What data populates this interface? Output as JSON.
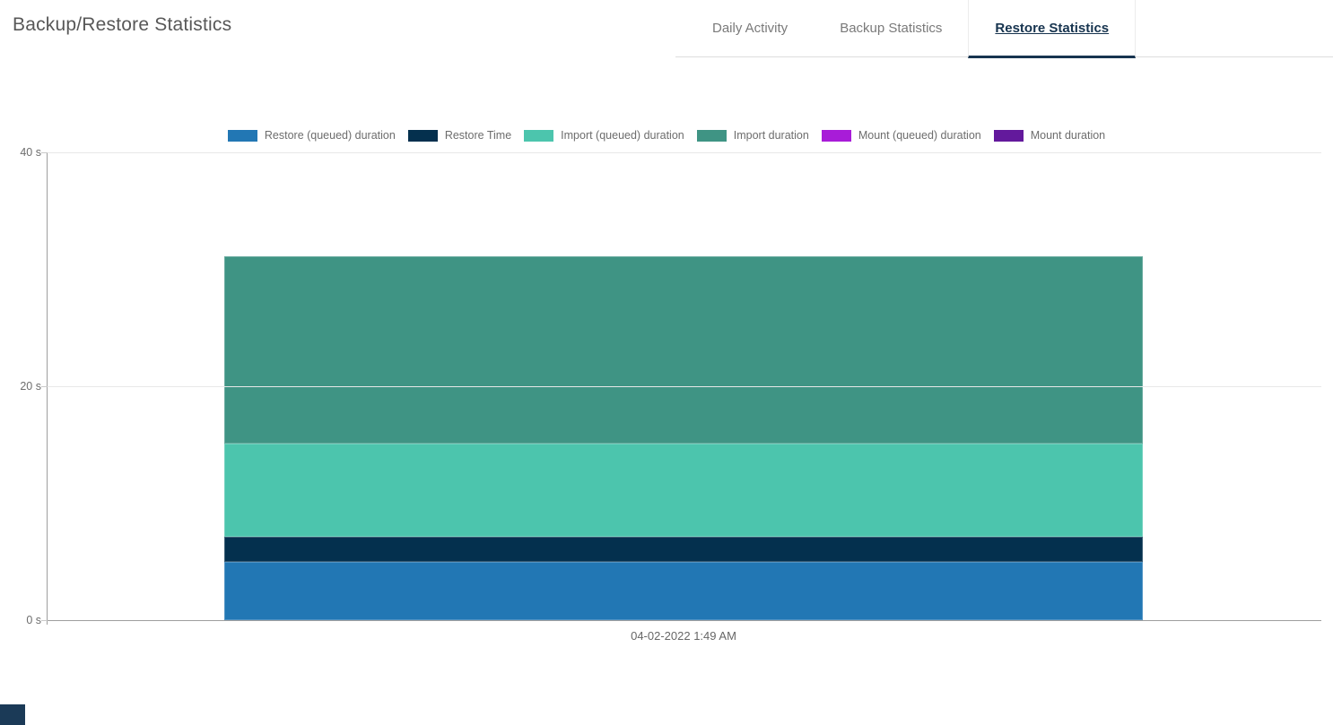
{
  "header": {
    "title": "Backup/Restore Statistics"
  },
  "tabs": {
    "items": [
      {
        "label": "Daily Activity",
        "active": false
      },
      {
        "label": "Backup Statistics",
        "active": false
      },
      {
        "label": "Restore Statistics",
        "active": true
      }
    ]
  },
  "colors": {
    "accent_navy": "#17344f",
    "tab_inactive_text": "#7a7a7a",
    "axis_line": "#9e9e9e",
    "gridline": "#e8e8e8",
    "legend_text": "#6d6d6d",
    "corner_block": "#1b3a57"
  },
  "chart_data": {
    "type": "bar",
    "stacked": true,
    "title": "",
    "xlabel": "",
    "ylabel": "",
    "categories": [
      "04-02-2022 1:49 AM"
    ],
    "series": [
      {
        "name": "Restore (queued) duration",
        "color": "#2277b4",
        "values": [
          5.0
        ]
      },
      {
        "name": "Restore Time",
        "color": "#04304e",
        "values": [
          2.1
        ]
      },
      {
        "name": "Import (queued) duration",
        "color": "#4cc5ad",
        "values": [
          8.0
        ]
      },
      {
        "name": "Import duration",
        "color": "#3f9484",
        "values": [
          16.0
        ]
      },
      {
        "name": "Mount (queued) duration",
        "color": "#a81cd8",
        "values": [
          0
        ]
      },
      {
        "name": "Mount duration",
        "color": "#63199c",
        "values": [
          0
        ]
      }
    ],
    "total_seconds": 31.1,
    "ylim": [
      0,
      40
    ],
    "yticks": [
      {
        "value": 0,
        "label": "0 s"
      },
      {
        "value": 20,
        "label": "20 s"
      },
      {
        "value": 40,
        "label": "40 s"
      }
    ],
    "grid": true,
    "legend_position": "top"
  }
}
